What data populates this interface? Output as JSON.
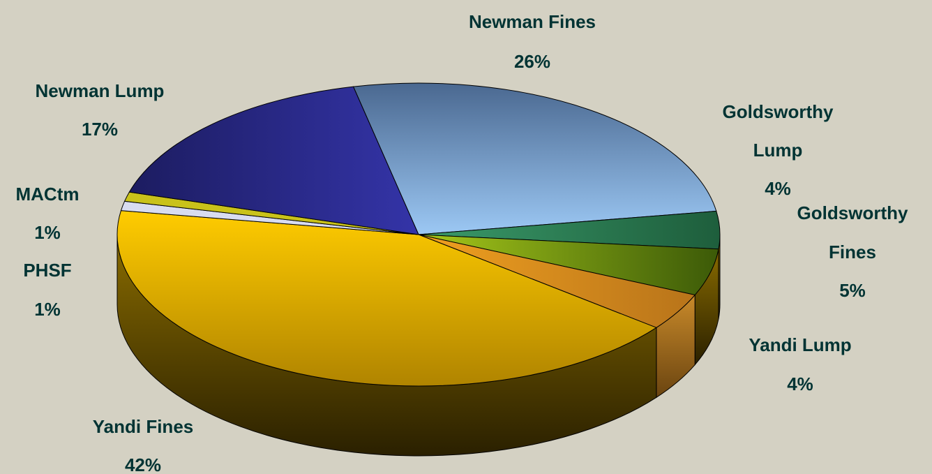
{
  "chart_data": {
    "type": "pie",
    "title": "",
    "three_d": true,
    "background": "#d4d1c3",
    "slices": [
      {
        "label": "Newman Fines",
        "value": 26,
        "value_label": "26%",
        "color": "#7ea6d6"
      },
      {
        "label": "Goldsworthy Lump",
        "value": 4,
        "value_label": "4%",
        "color": "#2e7d55"
      },
      {
        "label": "Goldsworthy Fines",
        "value": 5,
        "value_label": "5%",
        "color": "#6f9a12"
      },
      {
        "label": "Yandi Lump",
        "value": 4,
        "value_label": "4%",
        "color": "#d98a1a"
      },
      {
        "label": "Yandi Fines",
        "value": 42,
        "value_label": "42%",
        "color": "#e6b800"
      },
      {
        "label": "PHSF",
        "value": 1,
        "value_label": "1%",
        "color": "#d8dcf0"
      },
      {
        "label": "MACtm",
        "value": 1,
        "value_label": "1%",
        "color": "#c9c21a"
      },
      {
        "label": "Newman Lump",
        "value": 17,
        "value_label": "17%",
        "color": "#2a2a7e"
      }
    ]
  }
}
